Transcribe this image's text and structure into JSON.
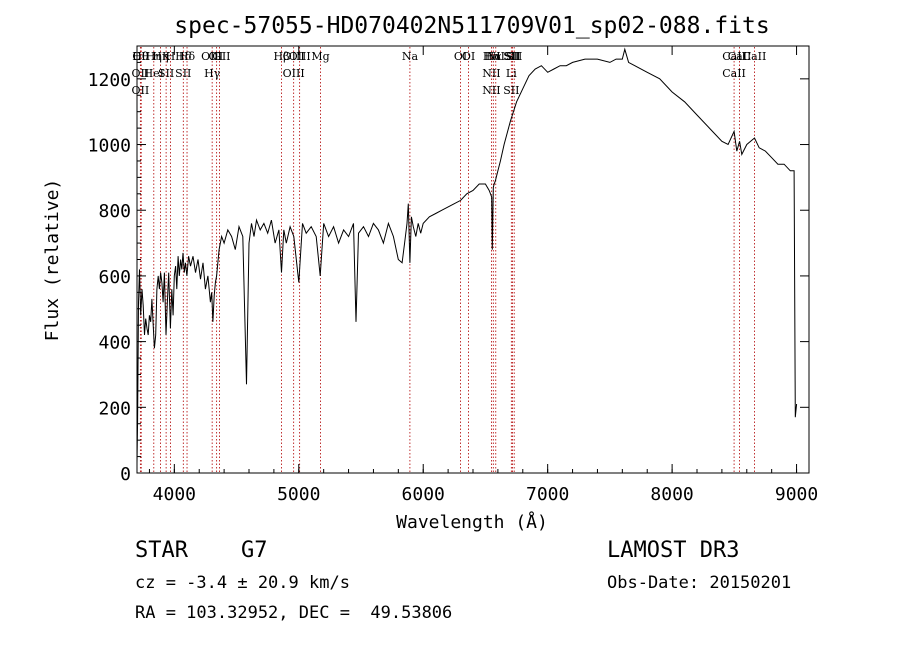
{
  "chart_data": {
    "type": "line",
    "title": "spec-57055-HD070402N511709V01_sp02-088.fits",
    "xlabel": "Wavelength (Å)",
    "ylabel": "Flux (relative)",
    "xlim": [
      3700,
      9100
    ],
    "ylim": [
      0,
      1300
    ],
    "xticks": [
      4000,
      5000,
      6000,
      7000,
      8000,
      9000
    ],
    "yticks": [
      0,
      200,
      400,
      600,
      800,
      1000,
      1200
    ],
    "series": [
      {
        "name": "flux",
        "x": [
          3700,
          3705,
          3712,
          3720,
          3730,
          3740,
          3750,
          3760,
          3770,
          3780,
          3790,
          3800,
          3810,
          3820,
          3830,
          3840,
          3850,
          3860,
          3870,
          3880,
          3890,
          3900,
          3910,
          3920,
          3933,
          3945,
          3955,
          3968,
          3980,
          3990,
          4000,
          4010,
          4020,
          4030,
          4040,
          4050,
          4060,
          4070,
          4080,
          4090,
          4101,
          4115,
          4130,
          4150,
          4170,
          4190,
          4210,
          4230,
          4250,
          4270,
          4290,
          4300,
          4310,
          4320,
          4330,
          4340,
          4360,
          4380,
          4400,
          4430,
          4460,
          4490,
          4520,
          4550,
          4580,
          4600,
          4620,
          4640,
          4660,
          4690,
          4720,
          4750,
          4780,
          4810,
          4840,
          4861,
          4880,
          4900,
          4930,
          4960,
          5000,
          5030,
          5060,
          5100,
          5140,
          5172,
          5200,
          5240,
          5280,
          5320,
          5360,
          5400,
          5440,
          5460,
          5480,
          5520,
          5560,
          5600,
          5640,
          5680,
          5720,
          5760,
          5800,
          5830,
          5850,
          5870,
          5880,
          5893,
          5905,
          5920,
          5940,
          5960,
          5980,
          6000,
          6050,
          6100,
          6150,
          6200,
          6250,
          6300,
          6350,
          6400,
          6450,
          6500,
          6530,
          6550,
          6555,
          6563,
          6570,
          6580,
          6600,
          6620,
          6650,
          6700,
          6750,
          6800,
          6850,
          6900,
          6950,
          7000,
          7050,
          7100,
          7150,
          7200,
          7300,
          7400,
          7500,
          7550,
          7600,
          7620,
          7650,
          7700,
          7800,
          7900,
          8000,
          8100,
          8200,
          8300,
          8400,
          8450,
          8498,
          8520,
          8542,
          8560,
          8600,
          8662,
          8700,
          8750,
          8800,
          8850,
          8900,
          8950,
          8980,
          8990,
          9000
        ],
        "y": [
          30,
          160,
          520,
          620,
          480,
          560,
          510,
          420,
          470,
          440,
          420,
          480,
          460,
          530,
          450,
          380,
          420,
          560,
          600,
          560,
          610,
          580,
          520,
          610,
          420,
          530,
          610,
          440,
          560,
          480,
          600,
          630,
          560,
          660,
          600,
          650,
          620,
          670,
          610,
          640,
          600,
          660,
          630,
          660,
          610,
          650,
          590,
          640,
          560,
          600,
          520,
          550,
          460,
          540,
          580,
          600,
          680,
          720,
          700,
          740,
          720,
          680,
          750,
          720,
          270,
          700,
          760,
          720,
          770,
          740,
          760,
          730,
          770,
          700,
          740,
          610,
          740,
          700,
          750,
          720,
          580,
          760,
          730,
          750,
          720,
          600,
          760,
          720,
          750,
          700,
          740,
          720,
          760,
          460,
          730,
          750,
          720,
          760,
          740,
          700,
          760,
          720,
          650,
          640,
          700,
          760,
          820,
          640,
          780,
          750,
          720,
          760,
          730,
          760,
          780,
          790,
          800,
          810,
          820,
          830,
          850,
          860,
          880,
          880,
          860,
          840,
          680,
          870,
          880,
          890,
          920,
          950,
          1000,
          1070,
          1130,
          1170,
          1210,
          1230,
          1240,
          1220,
          1230,
          1240,
          1240,
          1250,
          1260,
          1260,
          1250,
          1260,
          1260,
          1290,
          1250,
          1240,
          1220,
          1200,
          1160,
          1130,
          1090,
          1050,
          1010,
          1000,
          1040,
          980,
          1010,
          970,
          1000,
          1020,
          990,
          980,
          960,
          940,
          940,
          920,
          920,
          170,
          210
        ]
      }
    ],
    "lines": [
      {
        "labels": [
          "Hθ",
          "OII",
          "OII"
        ],
        "w": 3727
      },
      {
        "labels": [
          "OII"
        ],
        "w": 3734
      },
      {
        "labels": [
          "Hη",
          "HeI"
        ],
        "w": 3835
      },
      {
        "labels": [
          "Hη"
        ],
        "w": 3889
      },
      {
        "labels": [
          "K",
          "SII"
        ],
        "w": 3934
      },
      {
        "labels": [
          "H"
        ],
        "w": 3969
      },
      {
        "labels": [
          "Hδ",
          "SII"
        ],
        "w": 4072
      },
      {
        "labels": [
          "Hδ"
        ],
        "w": 4102
      },
      {
        "labels": [
          "OIII",
          "Hγ"
        ],
        "w": 4304
      },
      {
        "labels": [
          "G"
        ],
        "w": 4340
      },
      {
        "labels": [
          "OIII"
        ],
        "w": 4363
      },
      {
        "labels": [
          "Hβ"
        ],
        "w": 4861
      },
      {
        "labels": [
          "OIII",
          "OIII"
        ],
        "w": 4959
      },
      {
        "labels": [
          "OIII"
        ],
        "w": 5007
      },
      {
        "labels": [
          "Mg"
        ],
        "w": 5175
      },
      {
        "labels": [
          "Na"
        ],
        "w": 5893
      },
      {
        "labels": [
          "OI"
        ],
        "w": 6300
      },
      {
        "labels": [
          "OI"
        ],
        "w": 6364
      },
      {
        "labels": [
          "Hα",
          "NII",
          "NII"
        ],
        "w": 6548
      },
      {
        "labels": [
          "Hα"
        ],
        "w": 6563
      },
      {
        "labels": [
          "NII"
        ],
        "w": 6583
      },
      {
        "labels": [
          "SII",
          "Li",
          "SII"
        ],
        "w": 6708
      },
      {
        "labels": [
          "SII"
        ],
        "w": 6717
      },
      {
        "labels": [
          "SII"
        ],
        "w": 6731
      },
      {
        "labels": [
          "CaII",
          "CaII"
        ],
        "w": 8498
      },
      {
        "labels": [
          "CaII"
        ],
        "w": 8542
      },
      {
        "labels": [
          "CaII"
        ],
        "w": 8662
      }
    ]
  },
  "info": {
    "class_line": "STAR    G7",
    "survey": "LAMOST DR3",
    "cz_line": "cz = -3.4 ± 20.9 km/s",
    "obs_date": "Obs-Date: 20150201",
    "coords": "RA = 103.32952, DEC =  49.53806"
  }
}
